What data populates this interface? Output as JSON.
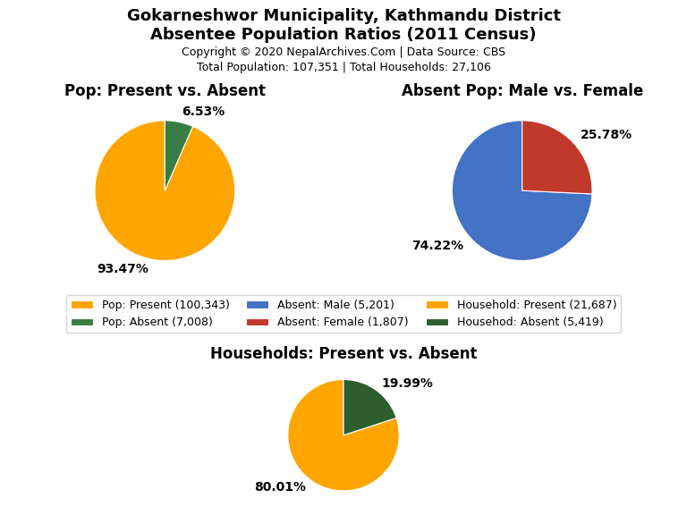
{
  "title": "Gokarneshwor Municipality, Kathmandu District",
  "subtitle": "Absentee Population Ratios (2011 Census)",
  "annotations": [
    "Copyright © 2020 NepalArchives.Com | Data Source: CBS",
    "Total Population: 107,351 | Total Households: 27,106"
  ],
  "legend": "center",
  "chart_data": [
    {
      "type": "pie",
      "title": "Pop: Present vs. Absent",
      "categories": [
        "Pop: Present (100,343)",
        "Pop: Absent (7,008)"
      ],
      "values": [
        93.47,
        6.53
      ],
      "value_labels": [
        "93.47%",
        "6.53%"
      ],
      "colors": [
        "#FFA500",
        "#3A7D44"
      ]
    },
    {
      "type": "pie",
      "title": "Absent Pop: Male vs. Female",
      "categories": [
        "Absent: Male (5,201)",
        "Absent: Female (1,807)"
      ],
      "values": [
        74.22,
        25.78
      ],
      "value_labels": [
        "74.22%",
        "25.78%"
      ],
      "colors": [
        "#4472C4",
        "#C0392B"
      ]
    },
    {
      "type": "pie",
      "title": "Households: Present vs. Absent",
      "categories": [
        "Household: Present (21,687)",
        "Househod: Absent (5,419)"
      ],
      "values": [
        80.01,
        19.99
      ],
      "value_labels": [
        "80.01%",
        "19.99%"
      ],
      "colors": [
        "#FFA500",
        "#2E5E2E"
      ]
    }
  ]
}
